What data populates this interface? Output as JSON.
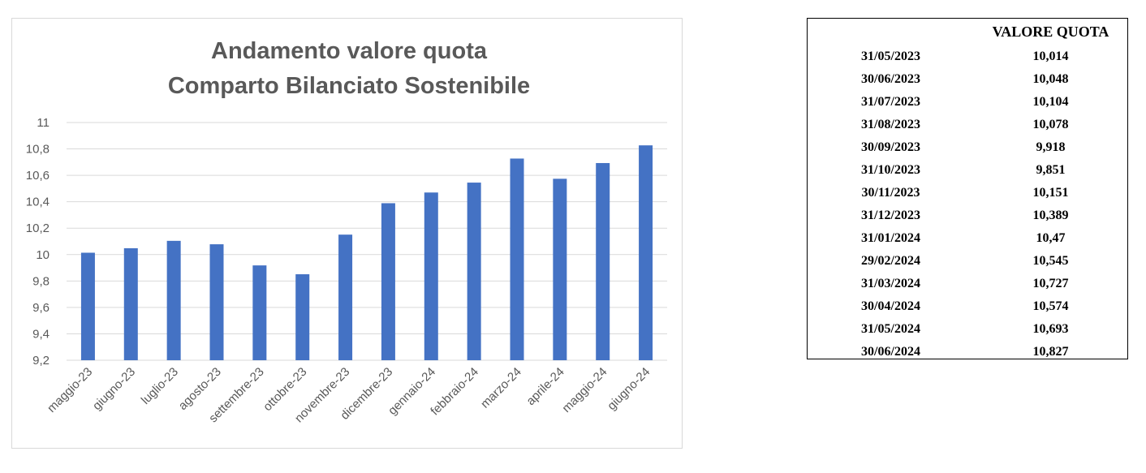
{
  "chart_data": {
    "type": "bar",
    "title": [
      "Andamento valore quota",
      "Comparto Bilanciato Sostenibile"
    ],
    "categories": [
      "maggio-23",
      "giugno-23",
      "luglio-23",
      "agosto-23",
      "settembre-23",
      "ottobre-23",
      "novembre-23",
      "dicembre-23",
      "gennaio-24",
      "febbraio-24",
      "marzo-24",
      "aprile-24",
      "maggio-24",
      "giugno-24"
    ],
    "values": [
      10.014,
      10.048,
      10.104,
      10.078,
      9.918,
      9.851,
      10.151,
      10.389,
      10.47,
      10.545,
      10.727,
      10.574,
      10.693,
      10.827
    ],
    "yticks": [
      "9,2",
      "9,4",
      "9,6",
      "9,8",
      "10",
      "10,2",
      "10,4",
      "10,6",
      "10,8",
      "11"
    ],
    "ylim": [
      9.2,
      11
    ],
    "grid": true,
    "bar_color": "#4472c4"
  },
  "table": {
    "header_date": "",
    "header_value": "VALORE QUOTA",
    "rows": [
      {
        "date": "31/05/2023",
        "value": "10,014"
      },
      {
        "date": "30/06/2023",
        "value": "10,048"
      },
      {
        "date": "31/07/2023",
        "value": "10,104"
      },
      {
        "date": "31/08/2023",
        "value": "10,078"
      },
      {
        "date": "30/09/2023",
        "value": "9,918"
      },
      {
        "date": "31/10/2023",
        "value": "9,851"
      },
      {
        "date": "30/11/2023",
        "value": "10,151"
      },
      {
        "date": "31/12/2023",
        "value": "10,389"
      },
      {
        "date": "31/01/2024",
        "value": "10,47"
      },
      {
        "date": "29/02/2024",
        "value": "10,545"
      },
      {
        "date": "31/03/2024",
        "value": "10,727"
      },
      {
        "date": "30/04/2024",
        "value": "10,574"
      },
      {
        "date": "31/05/2024",
        "value": "10,693"
      },
      {
        "date": "30/06/2024",
        "value": "10,827"
      }
    ]
  }
}
